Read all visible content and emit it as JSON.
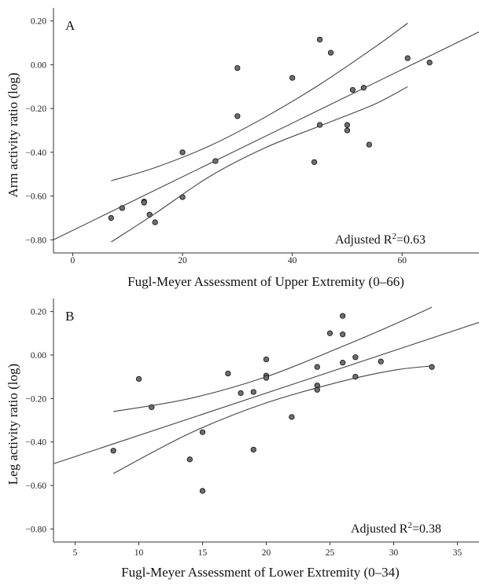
{
  "chart_data": [
    {
      "type": "scatter",
      "panel_label": "A",
      "xlabel": "Fugl-Meyer Assessment of Upper Extremity (0–66)",
      "ylabel": "Arm activity ratio (log)",
      "annotation": {
        "prefix": "Adjusted R",
        "sup": "2",
        "suffix": "=0.63"
      },
      "xlim": [
        -3.5,
        74
      ],
      "ylim": [
        -0.86,
        0.26
      ],
      "xticks": [
        0,
        20,
        40,
        60
      ],
      "yticks": [
        -0.8,
        -0.6,
        -0.4,
        -0.2,
        0.0,
        0.2
      ],
      "ytick_labels": [
        "−0.80",
        "−0.60",
        "−0.40",
        "−0.20",
        "0.00",
        "0.20"
      ],
      "fit": {
        "x": [
          -3.5,
          74
        ],
        "y": [
          -0.8,
          0.15
        ]
      },
      "ci_upper": {
        "x": [
          7,
          15,
          25,
          35,
          45,
          55,
          61
        ],
        "y": [
          -0.53,
          -0.47,
          -0.37,
          -0.24,
          -0.09,
          0.08,
          0.19
        ]
      },
      "ci_lower": {
        "x": [
          7,
          15,
          25,
          35,
          45,
          55,
          61
        ],
        "y": [
          -0.81,
          -0.68,
          -0.51,
          -0.38,
          -0.28,
          -0.18,
          -0.1
        ]
      },
      "points": [
        {
          "x": 7,
          "y": -0.7
        },
        {
          "x": 9,
          "y": -0.655
        },
        {
          "x": 13,
          "y": -0.625
        },
        {
          "x": 13,
          "y": -0.63
        },
        {
          "x": 14,
          "y": -0.685
        },
        {
          "x": 15,
          "y": -0.72
        },
        {
          "x": 20,
          "y": -0.4
        },
        {
          "x": 20,
          "y": -0.605
        },
        {
          "x": 26,
          "y": -0.44
        },
        {
          "x": 30,
          "y": -0.015
        },
        {
          "x": 30,
          "y": -0.235
        },
        {
          "x": 40,
          "y": -0.06
        },
        {
          "x": 44,
          "y": -0.445
        },
        {
          "x": 45,
          "y": 0.115
        },
        {
          "x": 45,
          "y": -0.275
        },
        {
          "x": 47,
          "y": 0.055
        },
        {
          "x": 50,
          "y": -0.275
        },
        {
          "x": 50,
          "y": -0.3
        },
        {
          "x": 51,
          "y": -0.115
        },
        {
          "x": 53,
          "y": -0.105
        },
        {
          "x": 54,
          "y": -0.365
        },
        {
          "x": 61,
          "y": 0.03
        },
        {
          "x": 65,
          "y": 0.01
        }
      ]
    },
    {
      "type": "scatter",
      "panel_label": "B",
      "xlabel": "Fugl-Meyer Assessment of Lower Extremity (0–34)",
      "ylabel": "Leg activity ratio (log)",
      "annotation": {
        "prefix": "Adjusted R",
        "sup": "2",
        "suffix": "=0.38"
      },
      "xlim": [
        3.3,
        36.7
      ],
      "ylim": [
        -0.86,
        0.26
      ],
      "xticks": [
        5,
        10,
        15,
        20,
        25,
        30,
        35
      ],
      "yticks": [
        -0.8,
        -0.6,
        -0.4,
        -0.2,
        0.0,
        0.2
      ],
      "ytick_labels": [
        "−0.80",
        "−0.60",
        "−0.40",
        "−0.20",
        "0.00",
        "0.20"
      ],
      "fit": {
        "x": [
          3.3,
          36.7
        ],
        "y": [
          -0.5,
          0.15
        ]
      },
      "ci_upper": {
        "x": [
          8,
          14,
          20,
          26,
          30,
          33
        ],
        "y": [
          -0.26,
          -0.2,
          -0.1,
          0.04,
          0.14,
          0.22
        ]
      },
      "ci_lower": {
        "x": [
          8,
          14,
          20,
          26,
          30,
          33
        ],
        "y": [
          -0.545,
          -0.36,
          -0.22,
          -0.12,
          -0.07,
          -0.05
        ]
      },
      "points": [
        {
          "x": 8,
          "y": -0.44
        },
        {
          "x": 10,
          "y": -0.11
        },
        {
          "x": 11,
          "y": -0.24
        },
        {
          "x": 14,
          "y": -0.48
        },
        {
          "x": 15,
          "y": -0.355
        },
        {
          "x": 15,
          "y": -0.625
        },
        {
          "x": 17,
          "y": -0.085
        },
        {
          "x": 18,
          "y": -0.175
        },
        {
          "x": 19,
          "y": -0.17
        },
        {
          "x": 19,
          "y": -0.435
        },
        {
          "x": 20,
          "y": -0.02
        },
        {
          "x": 20,
          "y": -0.095
        },
        {
          "x": 20,
          "y": -0.105
        },
        {
          "x": 22,
          "y": -0.285
        },
        {
          "x": 24,
          "y": -0.055
        },
        {
          "x": 24,
          "y": -0.14
        },
        {
          "x": 24,
          "y": -0.16
        },
        {
          "x": 25,
          "y": 0.1
        },
        {
          "x": 26,
          "y": 0.18
        },
        {
          "x": 26,
          "y": 0.095
        },
        {
          "x": 26,
          "y": -0.035
        },
        {
          "x": 27,
          "y": -0.01
        },
        {
          "x": 27,
          "y": -0.1
        },
        {
          "x": 29,
          "y": -0.03
        },
        {
          "x": 33,
          "y": -0.055
        }
      ]
    }
  ]
}
